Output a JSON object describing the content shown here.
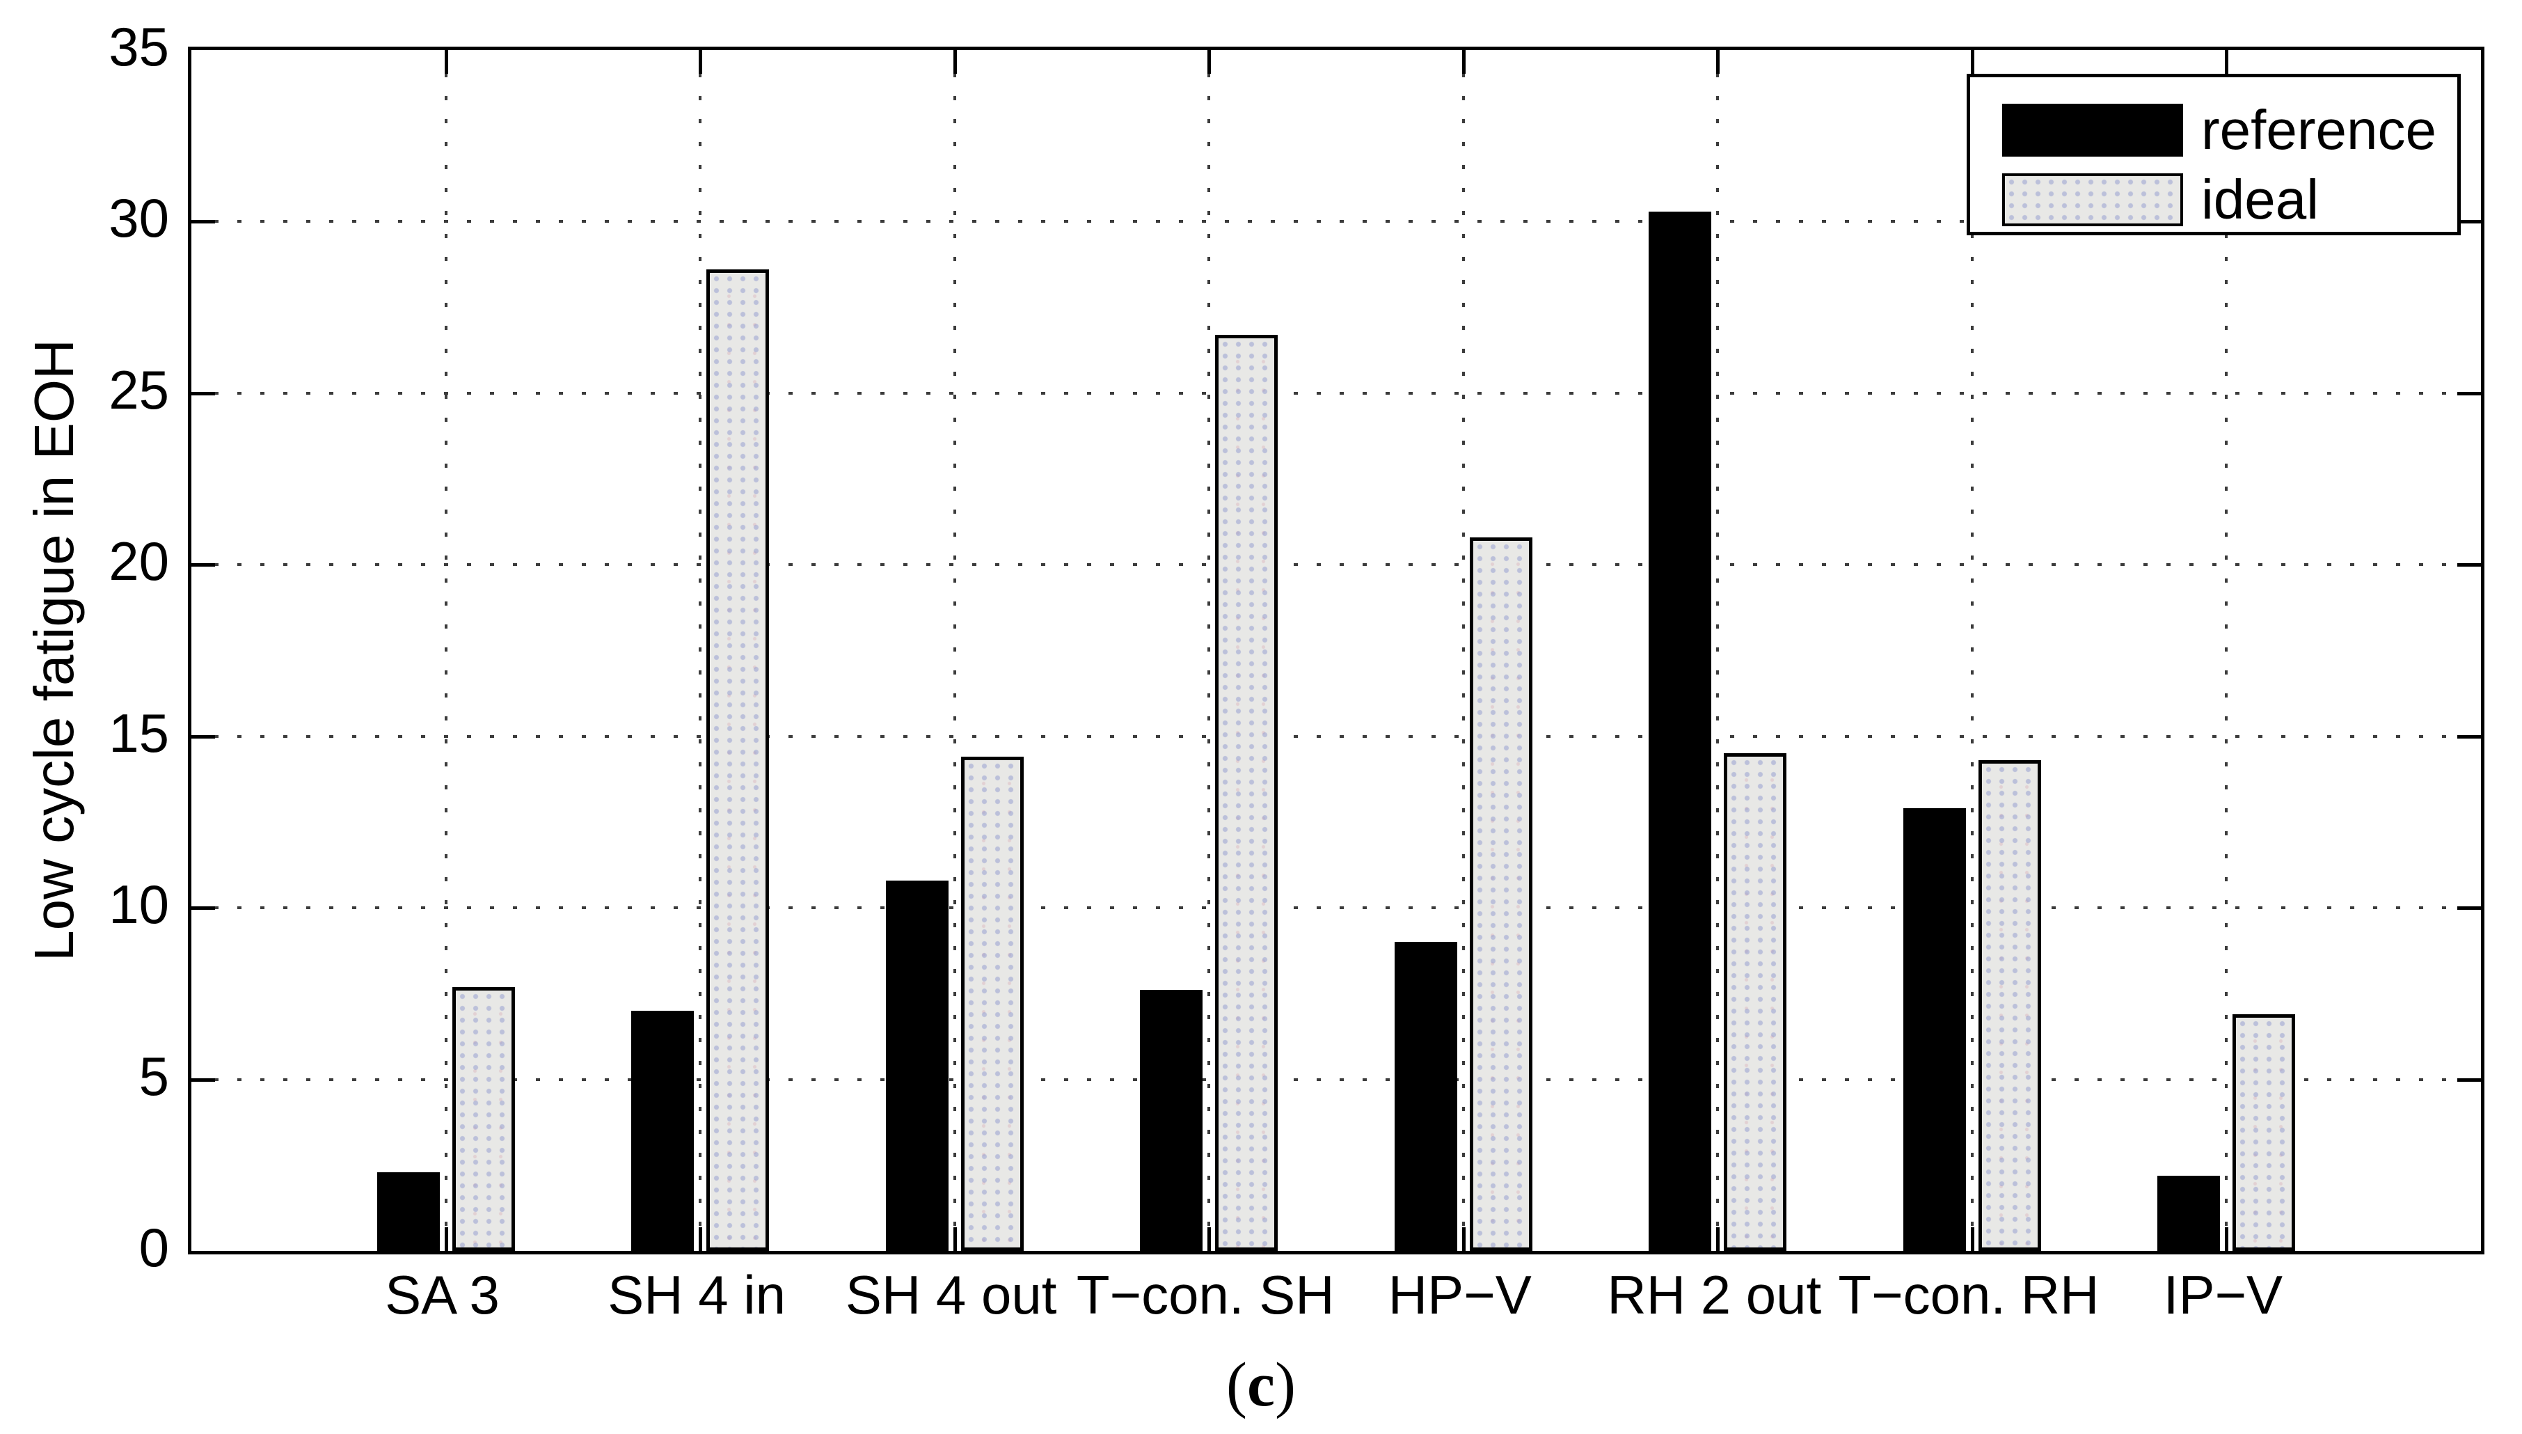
{
  "chart_data": {
    "type": "bar",
    "title": "",
    "xlabel": "",
    "ylabel": "Low cycle fatigue in EOH",
    "ylim": [
      0,
      35
    ],
    "yticks": [
      0,
      5,
      10,
      15,
      20,
      25,
      30,
      35
    ],
    "grid": "dotted",
    "legend_position": "top-right",
    "categories": [
      "SA 3",
      "SH 4 in",
      "SH 4 out",
      "T−con. SH",
      "HP−V",
      "RH 2 out",
      "T−con. RH",
      "IP−V"
    ],
    "series": [
      {
        "name": "reference",
        "color": "#000000",
        "values": [
          2.3,
          7.0,
          10.8,
          7.6,
          9.0,
          30.3,
          12.9,
          2.2
        ]
      },
      {
        "name": "ideal",
        "color": "#e8e8e6",
        "values": [
          7.7,
          28.6,
          14.4,
          26.7,
          20.8,
          14.5,
          14.3,
          6.9
        ]
      }
    ]
  },
  "legend": {
    "reference_label": "reference",
    "ideal_label": "ideal"
  },
  "caption": {
    "open": "(",
    "letter": "c",
    "close": ")"
  },
  "colors": {
    "reference": "#000000",
    "ideal_fill": "#e8e8e6",
    "axis": "#000000",
    "background": "#ffffff"
  }
}
